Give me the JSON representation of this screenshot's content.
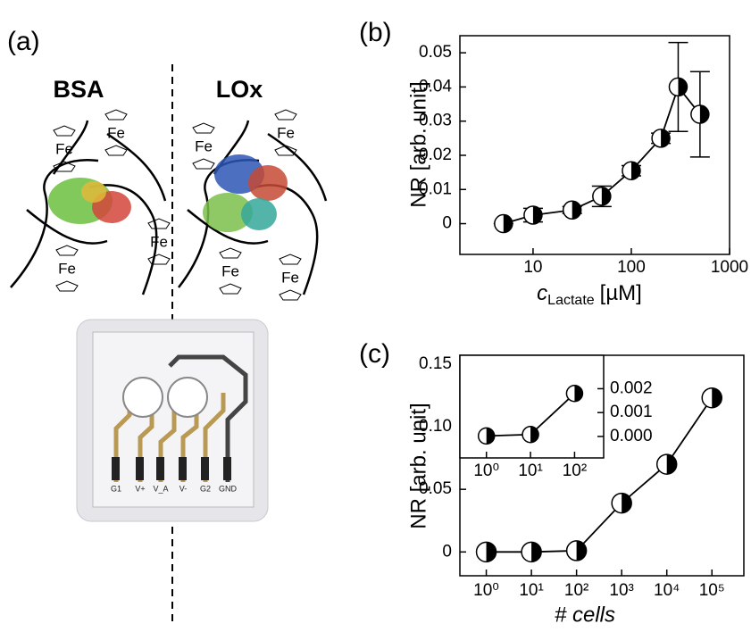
{
  "illustration": {
    "panel_label": "(a)",
    "left_title": "BSA",
    "right_title": "LOx",
    "fe_labels": [
      "Fe",
      "Fe",
      "Fe",
      "Fe",
      "Fe",
      "Fe",
      "Fe",
      "Fe"
    ],
    "pin_labels": [
      "G1",
      "V+",
      "V_A",
      "V-",
      "G2",
      "GND"
    ]
  },
  "chart_data": [
    {
      "type": "line",
      "panel_label": "(b)",
      "y_label": "NR [arb. unit]",
      "x_label": {
        "symbol": "c",
        "subscript": "Lactate",
        "unit": "[µM]"
      },
      "xscale": "log",
      "x": [
        5,
        10,
        25,
        50,
        100,
        200,
        300,
        500
      ],
      "values": [
        0,
        0.0025,
        0.004,
        0.008,
        0.0155,
        0.025,
        0.04,
        0.032
      ],
      "errors": [
        0,
        0.002,
        0.001,
        0.003,
        0.0015,
        0.0015,
        0.013,
        0.0125
      ],
      "color": "#000000",
      "xlim": [
        1.8,
        1000
      ],
      "xticks": [
        10,
        100,
        1000
      ],
      "ylim": [
        -0.009,
        0.055
      ],
      "yticks": [
        0,
        0.01,
        0.02,
        0.03,
        0.04,
        0.05
      ]
    },
    {
      "type": "line",
      "panel_label": "(c)",
      "y_label": "NR [arb. unit]",
      "x_label": "# cells",
      "xscale": "log",
      "x": [
        1,
        10,
        100,
        1000,
        10000,
        100000
      ],
      "values": [
        0,
        0,
        0.001,
        0.039,
        0.07,
        0.123
      ],
      "color": "#000000",
      "xlim": [
        0.26,
        510000
      ],
      "xticks": [
        {
          "value": 1,
          "label": "10⁰"
        },
        {
          "value": 10,
          "label": "10¹"
        },
        {
          "value": 100,
          "label": "10²"
        },
        {
          "value": 1000,
          "label": "10³"
        },
        {
          "value": 10000,
          "label": "10⁴"
        },
        {
          "value": 100000,
          "label": "10⁵"
        }
      ],
      "ylim": [
        -0.019,
        0.157
      ],
      "yticks": [
        0,
        0.05,
        {
          "value": 0.1,
          "label": "0.10"
        },
        0.15
      ]
    },
    {
      "type": "line",
      "xscale": "log",
      "x": [
        1,
        10,
        100
      ],
      "values": [
        2e-05,
        8e-05,
        0.0018
      ],
      "color": "#000000",
      "xlim": [
        0.25,
        457
      ],
      "xticks": [
        {
          "value": 1,
          "label": "10⁰"
        },
        {
          "value": 10,
          "label": "10¹"
        },
        {
          "value": 100,
          "label": "10²"
        }
      ],
      "ylim": [
        -0.0009,
        0.0034
      ],
      "yticks": [
        {
          "value": 0,
          "label": "0.000"
        },
        {
          "value": 0.001,
          "label": "0.001"
        },
        {
          "value": 0.002,
          "label": "0.002"
        }
      ]
    }
  ]
}
